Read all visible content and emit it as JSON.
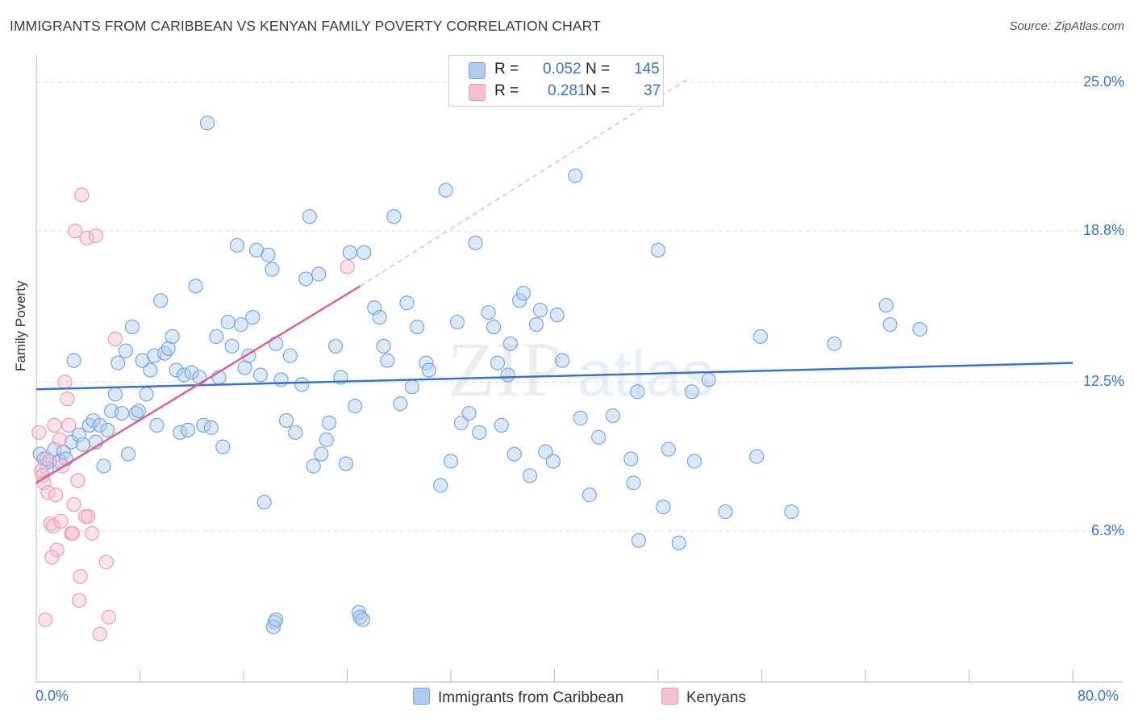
{
  "title": "IMMIGRANTS FROM CARIBBEAN VS KENYAN FAMILY POVERTY CORRELATION CHART",
  "source": "Source: ZipAtlas.com",
  "watermark": {
    "zip": "ZIP",
    "atlas": "atlas"
  },
  "legend_top": {
    "rows": [
      {
        "r_label": "R =",
        "r_value": "0.052",
        "n_label": "N =",
        "n_value": "145"
      },
      {
        "r_label": "R =",
        "r_value": "0.281",
        "n_label": "N =",
        "n_value": "37"
      }
    ]
  },
  "colors": {
    "blue": "#3b73c9",
    "blue_fill": "#aecbf0",
    "blue_stroke": "#7aa6e0",
    "pink": "#e06094",
    "pink_fill": "#f6bfd3",
    "pink_stroke": "#ee9ab9",
    "grid": "#dcdcdc",
    "axis": "#bbbbbb"
  },
  "chart_data": {
    "type": "scatter",
    "title": "IMMIGRANTS FROM CARIBBEAN VS KENYAN FAMILY POVERTY CORRELATION CHART",
    "xlabel": "",
    "ylabel": "Family Poverty",
    "xlim": [
      0,
      80
    ],
    "ylim": [
      0,
      25.8
    ],
    "x_tick_labels": [
      "0.0%",
      "80.0%"
    ],
    "y_ticks": [
      6.3,
      12.5,
      18.8,
      25.0
    ],
    "y_tick_labels": [
      "6.3%",
      "12.5%",
      "18.8%",
      "25.0%"
    ],
    "series": [
      {
        "name": "Immigrants from Caribbean",
        "color": "blue",
        "R": 0.052,
        "N": 145,
        "trend": {
          "x": [
            0,
            80
          ],
          "y": [
            12.2,
            13.3
          ]
        },
        "points": [
          [
            0.3,
            9.5
          ],
          [
            0.6,
            9.3
          ],
          [
            0.8,
            8.9
          ],
          [
            1.0,
            9.2
          ],
          [
            1.4,
            9.7
          ],
          [
            1.8,
            9.2
          ],
          [
            2.1,
            9.6
          ],
          [
            2.3,
            9.3
          ],
          [
            2.7,
            10.0
          ],
          [
            2.9,
            13.4
          ],
          [
            3.3,
            10.3
          ],
          [
            3.6,
            9.9
          ],
          [
            4.1,
            10.7
          ],
          [
            4.4,
            10.9
          ],
          [
            4.6,
            10.0
          ],
          [
            4.9,
            10.7
          ],
          [
            5.2,
            9.0
          ],
          [
            5.5,
            10.5
          ],
          [
            5.8,
            11.3
          ],
          [
            6.1,
            12.0
          ],
          [
            6.3,
            13.3
          ],
          [
            6.6,
            11.2
          ],
          [
            6.9,
            13.8
          ],
          [
            7.1,
            9.5
          ],
          [
            7.4,
            14.8
          ],
          [
            7.7,
            11.2
          ],
          [
            7.9,
            11.3
          ],
          [
            8.2,
            13.4
          ],
          [
            8.5,
            12.0
          ],
          [
            8.8,
            13.0
          ],
          [
            9.1,
            13.6
          ],
          [
            9.3,
            10.7
          ],
          [
            9.6,
            15.9
          ],
          [
            9.9,
            13.7
          ],
          [
            10.2,
            13.9
          ],
          [
            10.5,
            14.4
          ],
          [
            10.8,
            13.0
          ],
          [
            11.1,
            10.4
          ],
          [
            11.4,
            12.8
          ],
          [
            11.7,
            10.5
          ],
          [
            12.0,
            12.9
          ],
          [
            12.3,
            16.5
          ],
          [
            12.6,
            12.7
          ],
          [
            12.9,
            10.7
          ],
          [
            13.2,
            23.3
          ],
          [
            13.5,
            10.6
          ],
          [
            13.9,
            14.4
          ],
          [
            14.1,
            12.7
          ],
          [
            14.4,
            9.8
          ],
          [
            14.8,
            15.0
          ],
          [
            15.1,
            14.0
          ],
          [
            15.5,
            18.2
          ],
          [
            15.8,
            14.9
          ],
          [
            16.1,
            13.1
          ],
          [
            16.4,
            13.6
          ],
          [
            16.7,
            15.2
          ],
          [
            17.0,
            18.0
          ],
          [
            17.3,
            12.8
          ],
          [
            17.6,
            7.5
          ],
          [
            17.9,
            17.8
          ],
          [
            18.2,
            17.2
          ],
          [
            18.5,
            14.1
          ],
          [
            18.9,
            12.6
          ],
          [
            19.3,
            10.9
          ],
          [
            19.6,
            13.6
          ],
          [
            20.0,
            10.4
          ],
          [
            20.5,
            12.4
          ],
          [
            20.8,
            16.8
          ],
          [
            21.1,
            19.4
          ],
          [
            21.4,
            9.0
          ],
          [
            21.8,
            17.0
          ],
          [
            22.0,
            9.5
          ],
          [
            22.4,
            10.1
          ],
          [
            22.6,
            10.8
          ],
          [
            23.1,
            14.0
          ],
          [
            23.5,
            12.7
          ],
          [
            23.9,
            9.1
          ],
          [
            24.2,
            17.9
          ],
          [
            24.6,
            11.5
          ],
          [
            25.3,
            17.9
          ],
          [
            26.1,
            15.6
          ],
          [
            26.5,
            15.2
          ],
          [
            26.8,
            14.0
          ],
          [
            27.1,
            13.4
          ],
          [
            27.6,
            19.4
          ],
          [
            28.1,
            11.6
          ],
          [
            28.6,
            15.8
          ],
          [
            29.0,
            12.3
          ],
          [
            29.4,
            14.8
          ],
          [
            30.1,
            13.3
          ],
          [
            30.3,
            13.0
          ],
          [
            31.2,
            8.2
          ],
          [
            31.6,
            20.5
          ],
          [
            32.0,
            9.2
          ],
          [
            32.5,
            15.0
          ],
          [
            32.8,
            10.8
          ],
          [
            33.4,
            11.2
          ],
          [
            33.9,
            18.3
          ],
          [
            34.2,
            10.4
          ],
          [
            34.9,
            15.4
          ],
          [
            35.3,
            14.8
          ],
          [
            35.6,
            13.3
          ],
          [
            35.9,
            10.7
          ],
          [
            36.4,
            12.8
          ],
          [
            36.6,
            14.1
          ],
          [
            36.9,
            9.5
          ],
          [
            37.3,
            15.9
          ],
          [
            37.6,
            16.2
          ],
          [
            38.1,
            8.6
          ],
          [
            38.6,
            14.9
          ],
          [
            38.9,
            15.5
          ],
          [
            39.3,
            9.6
          ],
          [
            39.9,
            9.2
          ],
          [
            40.2,
            15.3
          ],
          [
            40.6,
            13.4
          ],
          [
            41.6,
            21.1
          ],
          [
            42.0,
            11.0
          ],
          [
            42.7,
            7.8
          ],
          [
            43.4,
            10.2
          ],
          [
            44.5,
            11.1
          ],
          [
            45.9,
            9.3
          ],
          [
            46.1,
            8.3
          ],
          [
            46.4,
            12.1
          ],
          [
            48.0,
            18.0
          ],
          [
            48.4,
            7.3
          ],
          [
            48.8,
            9.7
          ],
          [
            49.6,
            5.8
          ],
          [
            50.6,
            12.1
          ],
          [
            50.8,
            9.2
          ],
          [
            51.9,
            12.6
          ],
          [
            53.2,
            7.1
          ],
          [
            55.6,
            9.4
          ],
          [
            55.9,
            14.4
          ],
          [
            58.3,
            7.1
          ],
          [
            61.6,
            14.1
          ],
          [
            65.6,
            15.7
          ],
          [
            65.9,
            14.9
          ],
          [
            68.2,
            14.7
          ],
          [
            18.4,
            2.5
          ],
          [
            24.9,
            2.9
          ],
          [
            18.3,
            2.3
          ],
          [
            25.0,
            2.7
          ],
          [
            25.2,
            2.6
          ],
          [
            18.5,
            2.6
          ],
          [
            46.5,
            5.9
          ]
        ]
      },
      {
        "name": "Kenyans",
        "color": "pink",
        "R": 0.281,
        "N": 37,
        "trend": {
          "x": [
            0,
            25
          ],
          "y": [
            8.3,
            16.5
          ]
        },
        "trend_extension": {
          "x": [
            25,
            50.5
          ],
          "y": [
            16.5,
            25.2
          ]
        },
        "points": [
          [
            0.2,
            10.4
          ],
          [
            0.4,
            8.8
          ],
          [
            0.5,
            8.6
          ],
          [
            0.6,
            8.3
          ],
          [
            0.8,
            9.3
          ],
          [
            0.9,
            7.9
          ],
          [
            1.1,
            6.6
          ],
          [
            1.3,
            6.5
          ],
          [
            1.4,
            10.7
          ],
          [
            1.5,
            7.8
          ],
          [
            1.6,
            5.5
          ],
          [
            1.8,
            10.1
          ],
          [
            1.9,
            6.7
          ],
          [
            2.0,
            9.0
          ],
          [
            2.2,
            12.5
          ],
          [
            2.4,
            11.8
          ],
          [
            2.5,
            10.7
          ],
          [
            2.7,
            6.2
          ],
          [
            2.8,
            6.2
          ],
          [
            2.9,
            7.4
          ],
          [
            3.0,
            18.8
          ],
          [
            3.2,
            8.4
          ],
          [
            3.3,
            3.4
          ],
          [
            3.4,
            4.4
          ],
          [
            3.5,
            20.3
          ],
          [
            3.8,
            6.9
          ],
          [
            3.9,
            18.5
          ],
          [
            4.0,
            6.9
          ],
          [
            4.3,
            6.2
          ],
          [
            4.6,
            18.6
          ],
          [
            4.9,
            2.0
          ],
          [
            5.4,
            5.0
          ],
          [
            5.6,
            2.7
          ],
          [
            6.1,
            14.3
          ],
          [
            24.0,
            17.3
          ],
          [
            0.7,
            2.6
          ],
          [
            1.2,
            5.2
          ]
        ]
      }
    ]
  },
  "bottom_legend": [
    "Immigrants from Caribbean",
    "Kenyans"
  ]
}
